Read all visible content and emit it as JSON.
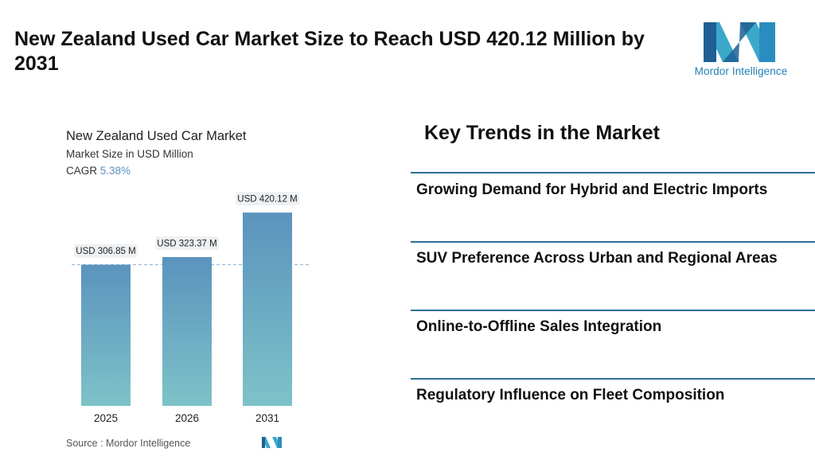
{
  "headline": "New Zealand Used Car Market Size to Reach USD 420.12 Million by 2031",
  "brand": {
    "name": "Mordor Intelligence",
    "colors": {
      "dark": "#1f5f94",
      "light": "#3aa9c9"
    }
  },
  "chart_data": {
    "type": "bar",
    "title": "New Zealand Used Car Market",
    "subtitle": "Market Size in USD Million",
    "cagr_label": "CAGR",
    "cagr_value": "5.38%",
    "categories": [
      "2025",
      "2026",
      "2031"
    ],
    "values": [
      306.85,
      323.37,
      420.12
    ],
    "data_labels": [
      "USD 306.85 M",
      "USD 323.37 M",
      "USD 420.12 M"
    ],
    "ylim": [
      0,
      440
    ],
    "reference_line_value": 306.85,
    "bar_gradient": [
      "#5b93bd",
      "#7ec2c8"
    ],
    "source": "Source :  Mordor Intelligence"
  },
  "trends": {
    "title": "Key Trends in the Market",
    "items": [
      "Growing Demand for Hybrid and Electric Imports",
      "SUV Preference Across Urban and Regional Areas",
      "Online-to-Offline Sales Integration",
      "Regulatory Influence on Fleet Composition"
    ]
  }
}
